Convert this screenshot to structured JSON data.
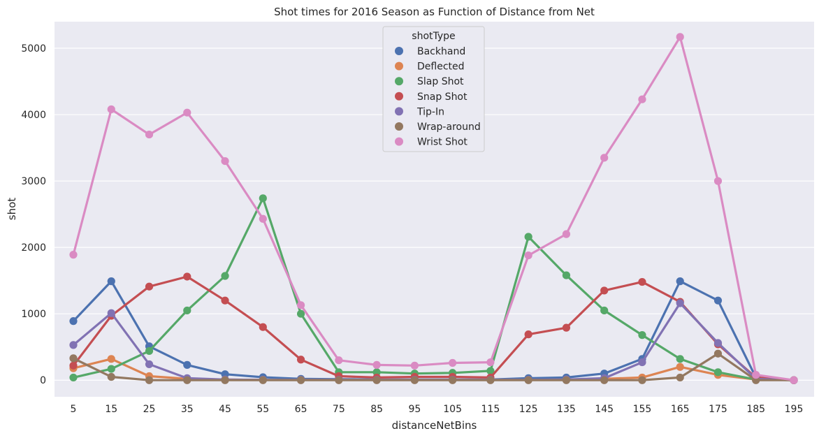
{
  "chart_data": {
    "type": "line",
    "title": "Shot times for 2016 Season as Function of Distance from Net",
    "xlabel": "distanceNetBins",
    "ylabel": "shot",
    "ylim": [
      -250,
      5400
    ],
    "yticks": [
      0,
      1000,
      2000,
      3000,
      4000,
      5000
    ],
    "grid": true,
    "legend": {
      "title": "shotType",
      "placement": "top-center"
    },
    "categories": [
      "5",
      "15",
      "25",
      "35",
      "45",
      "55",
      "65",
      "75",
      "85",
      "95",
      "105",
      "115",
      "125",
      "135",
      "145",
      "155",
      "165",
      "175",
      "185",
      "195"
    ],
    "series": [
      {
        "name": "Backhand",
        "color": "#4c72b0",
        "values": [
          890,
          1490,
          510,
          230,
          90,
          45,
          20,
          15,
          10,
          10,
          10,
          10,
          30,
          40,
          100,
          320,
          1490,
          1200,
          40,
          0
        ]
      },
      {
        "name": "Deflected",
        "color": "#dd8452",
        "values": [
          180,
          320,
          60,
          20,
          10,
          5,
          5,
          5,
          5,
          5,
          5,
          5,
          5,
          10,
          20,
          40,
          200,
          80,
          10,
          0
        ]
      },
      {
        "name": "Slap Shot",
        "color": "#55a868",
        "values": [
          40,
          170,
          440,
          1050,
          1570,
          2740,
          1000,
          120,
          120,
          100,
          110,
          140,
          2160,
          1580,
          1050,
          680,
          320,
          120,
          10,
          0
        ]
      },
      {
        "name": "Snap Shot",
        "color": "#c44e52",
        "values": [
          220,
          970,
          1410,
          1560,
          1200,
          800,
          310,
          60,
          40,
          50,
          50,
          40,
          690,
          790,
          1350,
          1480,
          1180,
          540,
          40,
          0
        ]
      },
      {
        "name": "Tip-In",
        "color": "#8172b3",
        "values": [
          530,
          1010,
          240,
          30,
          10,
          5,
          5,
          5,
          5,
          5,
          5,
          5,
          5,
          10,
          30,
          270,
          1160,
          560,
          20,
          0
        ]
      },
      {
        "name": "Wrap-around",
        "color": "#937860",
        "values": [
          330,
          50,
          0,
          0,
          0,
          0,
          0,
          0,
          0,
          0,
          0,
          0,
          0,
          0,
          0,
          0,
          40,
          400,
          0,
          0
        ]
      },
      {
        "name": "Wrist Shot",
        "color": "#da8bc3",
        "values": [
          1890,
          4080,
          3700,
          4030,
          3300,
          2430,
          1130,
          300,
          230,
          220,
          260,
          270,
          1880,
          2200,
          3350,
          4230,
          5170,
          3000,
          80,
          0
        ]
      }
    ]
  }
}
